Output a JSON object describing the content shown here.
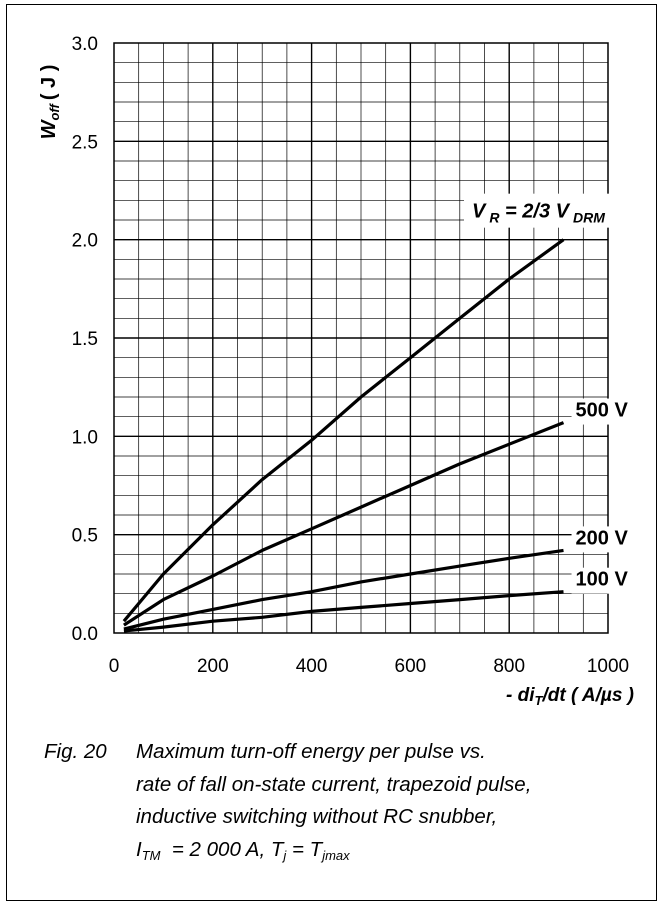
{
  "chart_data": {
    "type": "line",
    "title": "",
    "xlabel_prefix": "- di",
    "xlabel_sub": "T",
    "xlabel_suffix": "/dt ( A/µs )",
    "ylabel_main": "W",
    "ylabel_sub": "off",
    "ylabel_unit": "( J )",
    "xlim": [
      0,
      1000
    ],
    "ylim": [
      0,
      3.0
    ],
    "x_ticks": [
      "0",
      "200",
      "400",
      "600",
      "800",
      "1000"
    ],
    "y_ticks": [
      "0.0",
      "0.5",
      "1.0",
      "1.5",
      "2.0",
      "2.5",
      "3.0"
    ],
    "grid": true,
    "x": [
      20,
      100,
      200,
      300,
      400,
      500,
      600,
      700,
      800,
      910
    ],
    "series": [
      {
        "name": "V R = 2/3 V DRM",
        "values": [
          0.06,
          0.3,
          0.55,
          0.78,
          0.98,
          1.2,
          1.4,
          1.6,
          1.8,
          2.0
        ]
      },
      {
        "name": "500 V",
        "values": [
          0.04,
          0.17,
          0.29,
          0.42,
          0.53,
          0.64,
          0.75,
          0.86,
          0.96,
          1.07
        ]
      },
      {
        "name": "200 V",
        "values": [
          0.02,
          0.07,
          0.12,
          0.17,
          0.21,
          0.26,
          0.3,
          0.34,
          0.38,
          0.42
        ]
      },
      {
        "name": "100 V",
        "values": [
          0.01,
          0.03,
          0.06,
          0.08,
          0.11,
          0.13,
          0.15,
          0.17,
          0.19,
          0.21
        ]
      }
    ],
    "labels": [
      {
        "main": "V",
        "sub": "R",
        "mid": " = 2/3 V",
        "sub2": "DRM"
      },
      {
        "main": "500 V"
      },
      {
        "main": "200 V"
      },
      {
        "main": "100 V"
      }
    ]
  },
  "caption": {
    "fig": "Fig. 20",
    "line1": "Maximum turn-off energy per pulse vs.",
    "line2": "rate of fall on-state current, trapezoid pulse,",
    "line3": "inductive switching without RC snubber,",
    "itm_main": "I",
    "itm_sub": "TM",
    "itm_val": "= 2 000 A,",
    "tj_main": "T",
    "tj_sub": "j",
    "tj_eq": "= T",
    "tj_sub2": "jmax"
  }
}
